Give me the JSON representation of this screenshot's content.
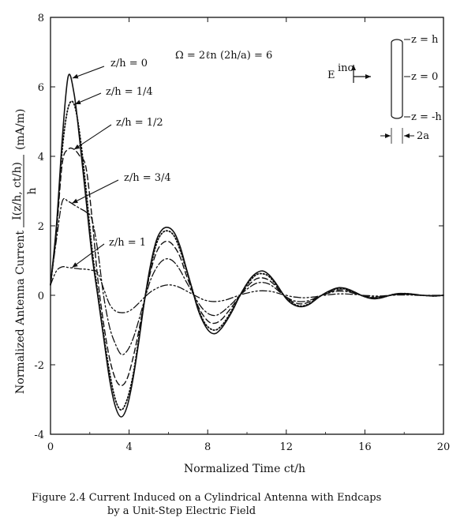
{
  "chart_data": {
    "type": "line",
    "xlabel": "Normalized Time ct/h",
    "ylabel_prefix": "Normalized Antenna Current",
    "ylabel_fraction_num": "I(z/h, ct/h)",
    "ylabel_fraction_den": "h",
    "ylabel_units": "(mA/m)",
    "xlim": [
      0,
      20
    ],
    "ylim": [
      -4,
      8
    ],
    "x_ticks": [
      0,
      4,
      8,
      12,
      16,
      20
    ],
    "y_ticks": [
      -4,
      -2,
      0,
      2,
      4,
      6,
      8
    ],
    "formula": "Ω = 2ℓn (2h/a) = 6",
    "inset": {
      "field_label": "E",
      "field_superscript": "inc",
      "z_top": "z =  h",
      "z_mid": "z = 0",
      "z_bot": "z = -h",
      "radius_label": "2a"
    },
    "series": [
      {
        "name": "z/h = 0",
        "style": "solid",
        "x": [
          0,
          0.3,
          0.6,
          0.9,
          1.2,
          1.5,
          1.8,
          2.1,
          2.4,
          2.7,
          3.0,
          3.3,
          3.6,
          3.9,
          4.2,
          4.5,
          4.8,
          5.1,
          5.4,
          5.7,
          6.0,
          6.3,
          6.6,
          6.9,
          7.2,
          7.5,
          7.8,
          8.1,
          8.4,
          8.7,
          9.0,
          9.3,
          9.6,
          9.9,
          10.2,
          10.5,
          10.8,
          11.1,
          11.4,
          11.7,
          12.0,
          12.3,
          12.6,
          12.9,
          13.2,
          13.5,
          13.8,
          14.1,
          14.4,
          14.7,
          15.0,
          15.3,
          15.6,
          15.9,
          16.2,
          16.5,
          16.8,
          17.1,
          17.4,
          17.7,
          18.0,
          18.3,
          18.6,
          18.9,
          19.2,
          19.5,
          19.8,
          20.0
        ],
        "y": [
          0.3,
          2.0,
          4.5,
          6.3,
          5.8,
          4.4,
          2.8,
          1.2,
          0.0,
          -1.2,
          -2.4,
          -3.2,
          -3.5,
          -3.2,
          -2.4,
          -1.3,
          -0.1,
          0.9,
          1.6,
          1.9,
          1.95,
          1.8,
          1.4,
          0.8,
          0.2,
          -0.4,
          -0.8,
          -1.05,
          -1.1,
          -0.95,
          -0.7,
          -0.4,
          -0.05,
          0.25,
          0.5,
          0.65,
          0.7,
          0.6,
          0.4,
          0.15,
          -0.1,
          -0.25,
          -0.32,
          -0.32,
          -0.25,
          -0.12,
          0.0,
          0.1,
          0.18,
          0.22,
          0.2,
          0.14,
          0.06,
          -0.02,
          -0.08,
          -0.1,
          -0.08,
          -0.03,
          0.02,
          0.05,
          0.05,
          0.04,
          0.02,
          0.0,
          -0.01,
          -0.02,
          -0.01,
          0.0
        ]
      },
      {
        "name": "z/h = 1/4",
        "style": "dotted",
        "x": [
          0,
          0.3,
          0.6,
          0.9,
          1.2,
          1.5,
          1.8,
          2.1,
          2.4,
          2.7,
          3.0,
          3.3,
          3.6,
          3.9,
          4.2,
          4.5,
          4.8,
          5.1,
          5.4,
          5.7,
          6.0,
          6.3,
          6.6,
          6.9,
          7.2,
          7.5,
          7.8,
          8.1,
          8.4,
          8.7,
          9.0,
          9.3,
          9.6,
          9.9,
          10.2,
          10.5,
          10.8,
          11.1,
          11.4,
          11.7,
          12.0,
          12.3,
          12.6,
          12.9,
          13.2,
          13.5,
          13.8,
          14.1,
          14.4,
          14.7,
          15.0,
          15.3,
          15.6,
          15.9,
          16.2,
          16.5,
          16.8,
          17.1,
          17.4,
          17.7,
          18.0,
          18.3,
          18.6,
          18.9,
          19.2,
          19.5,
          19.8,
          20.0
        ],
        "y": [
          0.3,
          1.9,
          4.2,
          5.4,
          5.5,
          4.6,
          3.1,
          1.4,
          0.1,
          -1.1,
          -2.2,
          -3.0,
          -3.3,
          -3.0,
          -2.3,
          -1.2,
          -0.1,
          0.8,
          1.5,
          1.8,
          1.85,
          1.7,
          1.3,
          0.75,
          0.2,
          -0.35,
          -0.75,
          -0.95,
          -1.0,
          -0.88,
          -0.65,
          -0.35,
          -0.05,
          0.22,
          0.45,
          0.6,
          0.62,
          0.55,
          0.36,
          0.13,
          -0.08,
          -0.22,
          -0.3,
          -0.3,
          -0.23,
          -0.11,
          0.0,
          0.09,
          0.16,
          0.2,
          0.18,
          0.12,
          0.05,
          -0.02,
          -0.07,
          -0.09,
          -0.07,
          -0.03,
          0.02,
          0.04,
          0.05,
          0.04,
          0.02,
          0.0,
          -0.01,
          -0.02,
          -0.01,
          0.0
        ]
      },
      {
        "name": "z/h = 1/2",
        "style": "dashed",
        "x": [
          0,
          0.3,
          0.6,
          0.9,
          1.2,
          1.5,
          1.8,
          2.1,
          2.4,
          2.7,
          3.0,
          3.3,
          3.6,
          3.9,
          4.2,
          4.5,
          4.8,
          5.1,
          5.4,
          5.7,
          6.0,
          6.3,
          6.6,
          6.9,
          7.2,
          7.5,
          7.8,
          8.1,
          8.4,
          8.7,
          9.0,
          9.3,
          9.6,
          9.9,
          10.2,
          10.5,
          10.8,
          11.1,
          11.4,
          11.7,
          12.0,
          12.3,
          12.6,
          12.9,
          13.2,
          13.5,
          13.8,
          14.1,
          14.4,
          14.7,
          15.0,
          15.3,
          15.6,
          15.9,
          16.2,
          16.5,
          16.8,
          17.1,
          17.4,
          17.7,
          18.0,
          18.3,
          18.6,
          18.9,
          19.2,
          19.5,
          19.8,
          20.0
        ],
        "y": [
          0.3,
          1.8,
          3.8,
          4.2,
          4.2,
          4.0,
          3.7,
          2.3,
          0.5,
          -0.8,
          -1.8,
          -2.4,
          -2.6,
          -2.4,
          -1.8,
          -1.0,
          -0.1,
          0.7,
          1.25,
          1.5,
          1.55,
          1.4,
          1.1,
          0.6,
          0.15,
          -0.3,
          -0.6,
          -0.78,
          -0.8,
          -0.7,
          -0.5,
          -0.28,
          -0.03,
          0.18,
          0.36,
          0.48,
          0.5,
          0.44,
          0.3,
          0.1,
          -0.06,
          -0.18,
          -0.24,
          -0.24,
          -0.18,
          -0.09,
          0.0,
          0.07,
          0.13,
          0.16,
          0.15,
          0.1,
          0.04,
          -0.02,
          -0.06,
          -0.07,
          -0.06,
          -0.02,
          0.01,
          0.03,
          0.04,
          0.03,
          0.02,
          0.0,
          -0.01,
          -0.01,
          -0.01,
          0.0
        ]
      },
      {
        "name": "z/h = 3/4",
        "style": "dashdot",
        "x": [
          0,
          0.3,
          0.6,
          0.9,
          1.2,
          1.5,
          1.8,
          2.1,
          2.4,
          2.7,
          3.0,
          3.3,
          3.6,
          3.9,
          4.2,
          4.5,
          4.8,
          5.1,
          5.4,
          5.7,
          6.0,
          6.3,
          6.6,
          6.9,
          7.2,
          7.5,
          7.8,
          8.1,
          8.4,
          8.7,
          9.0,
          9.3,
          9.6,
          9.9,
          10.2,
          10.5,
          10.8,
          11.1,
          11.4,
          11.7,
          12.0,
          12.3,
          12.6,
          12.9,
          13.2,
          13.5,
          13.8,
          14.1,
          14.4,
          14.7,
          15.0,
          15.3,
          15.6,
          15.9,
          16.2,
          16.5,
          16.8,
          17.1,
          17.4,
          17.7,
          18.0,
          18.3,
          18.6,
          18.9,
          19.2,
          19.5,
          19.8,
          20.0
        ],
        "y": [
          0.3,
          1.6,
          2.7,
          2.7,
          2.6,
          2.5,
          2.4,
          2.2,
          1.3,
          0.0,
          -0.9,
          -1.4,
          -1.7,
          -1.6,
          -1.25,
          -0.7,
          -0.1,
          0.45,
          0.8,
          1.0,
          1.05,
          0.95,
          0.72,
          0.4,
          0.1,
          -0.2,
          -0.42,
          -0.55,
          -0.58,
          -0.5,
          -0.36,
          -0.2,
          -0.02,
          0.13,
          0.26,
          0.35,
          0.37,
          0.33,
          0.22,
          0.08,
          -0.05,
          -0.14,
          -0.18,
          -0.18,
          -0.14,
          -0.07,
          0.0,
          0.05,
          0.1,
          0.12,
          0.11,
          0.08,
          0.03,
          -0.01,
          -0.04,
          -0.05,
          -0.04,
          -0.02,
          0.01,
          0.02,
          0.03,
          0.02,
          0.01,
          0.0,
          -0.01,
          -0.01,
          0.0,
          0.0
        ]
      },
      {
        "name": "z/h = 1",
        "style": "dashdotdot",
        "x": [
          0,
          0.3,
          0.6,
          0.9,
          1.2,
          1.5,
          1.8,
          2.1,
          2.4,
          2.7,
          3.0,
          3.3,
          3.6,
          3.9,
          4.2,
          4.5,
          4.8,
          5.1,
          5.4,
          5.7,
          6.0,
          6.3,
          6.6,
          6.9,
          7.2,
          7.5,
          7.8,
          8.1,
          8.4,
          8.7,
          9.0,
          9.3,
          9.6,
          9.9,
          10.2,
          10.5,
          10.8,
          11.1,
          11.4,
          11.7,
          12.0,
          12.3,
          12.6,
          12.9,
          13.2,
          13.5,
          13.8,
          14.1,
          14.4,
          14.7,
          15.0,
          15.3,
          15.6,
          15.9,
          16.2,
          16.5,
          16.8,
          17.1,
          17.4,
          17.7,
          18.0,
          18.3,
          18.6,
          18.9,
          19.2,
          19.5,
          19.8,
          20.0
        ],
        "y": [
          0.3,
          0.7,
          0.82,
          0.8,
          0.78,
          0.76,
          0.75,
          0.72,
          0.65,
          0.2,
          -0.25,
          -0.45,
          -0.5,
          -0.48,
          -0.38,
          -0.22,
          -0.05,
          0.1,
          0.2,
          0.27,
          0.3,
          0.28,
          0.22,
          0.13,
          0.04,
          -0.05,
          -0.13,
          -0.17,
          -0.18,
          -0.16,
          -0.12,
          -0.06,
          0.0,
          0.05,
          0.09,
          0.12,
          0.13,
          0.12,
          0.09,
          0.04,
          0.0,
          -0.04,
          -0.06,
          -0.07,
          -0.06,
          -0.04,
          -0.01,
          0.01,
          0.03,
          0.04,
          0.04,
          0.03,
          0.02,
          0.0,
          -0.01,
          -0.02,
          -0.02,
          -0.01,
          0.0,
          0.01,
          0.01,
          0.01,
          0.0,
          0.0,
          0.0,
          0.0,
          0.0,
          0.0
        ]
      }
    ],
    "annotations": [
      {
        "text": "z/h = 0",
        "series": 0,
        "target_x": 1.12,
        "target_y": 6.25
      },
      {
        "text": "z/h = 1/4",
        "series": 1,
        "target_x": 1.25,
        "target_y": 5.5
      },
      {
        "text": "z/h = 1/2",
        "series": 2,
        "target_x": 1.2,
        "target_y": 4.2
      },
      {
        "text": "z/h = 3/4",
        "series": 3,
        "target_x": 1.1,
        "target_y": 2.65
      },
      {
        "text": "z/h = 1",
        "series": 4,
        "target_x": 1.1,
        "target_y": 0.8
      }
    ]
  },
  "caption": {
    "line1": "Figure 2.4  Current Induced on a Cylindrical Antenna with Endcaps",
    "line2": "by a Unit-Step Electric Field"
  }
}
